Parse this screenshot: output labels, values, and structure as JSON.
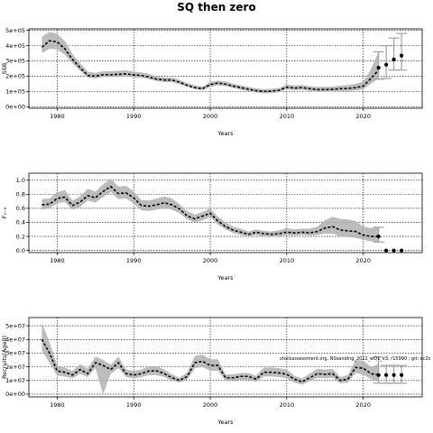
{
  "title": "SQ then zero",
  "chart_data": [
    {
      "type": "line",
      "panel": "ssb",
      "ylabel": "SSB",
      "xlabel": "Years",
      "xlim": [
        1976.3,
        2027.7
      ],
      "ylim": [
        -10000,
        510000
      ],
      "xticks": [
        1980,
        1990,
        2000,
        2010,
        2020
      ],
      "xtick_labels": [
        "1980",
        "1990",
        "2000",
        "2010",
        "2020"
      ],
      "yticks": [
        0,
        100000,
        200000,
        300000,
        400000,
        500000
      ],
      "ytick_labels": [
        "0e+00",
        "1e+05",
        "2e+05",
        "3e+05",
        "4e+05",
        "5e+05"
      ],
      "grid": true,
      "color_line": "#000000",
      "color_band": "#b0b0b0",
      "series": [
        {
          "role": "estimate",
          "x": [
            1978,
            1979,
            1980,
            1981,
            1982,
            1983,
            1984,
            1985,
            1986,
            1987,
            1988,
            1989,
            1990,
            1991,
            1992,
            1993,
            1994,
            1995,
            1996,
            1997,
            1998,
            1999,
            2000,
            2001,
            2002,
            2003,
            2004,
            2005,
            2006,
            2007,
            2008,
            2009,
            2010,
            2011,
            2012,
            2013,
            2014,
            2015,
            2016,
            2017,
            2018,
            2019,
            2020,
            2021,
            2022
          ],
          "values": [
            390000,
            432000,
            425000,
            380000,
            310000,
            255000,
            205000,
            200000,
            210000,
            210000,
            212000,
            215000,
            208000,
            205000,
            195000,
            180000,
            175000,
            175000,
            160000,
            140000,
            125000,
            118000,
            145000,
            155000,
            148000,
            135000,
            125000,
            115000,
            105000,
            100000,
            102000,
            108000,
            128000,
            122000,
            125000,
            118000,
            112000,
            112000,
            114000,
            118000,
            120000,
            125000,
            135000,
            185000,
            240000
          ],
          "lower": [
            350000,
            380000,
            375000,
            340000,
            285000,
            235000,
            190000,
            185000,
            195000,
            195000,
            195000,
            198000,
            193000,
            190000,
            180000,
            168000,
            162000,
            162000,
            148000,
            130000,
            115000,
            108000,
            130000,
            140000,
            135000,
            123000,
            112000,
            102000,
            93000,
            88000,
            90000,
            95000,
            113000,
            108000,
            111000,
            104000,
            98000,
            98000,
            100000,
            102000,
            103000,
            106000,
            113000,
            150000,
            185000
          ],
          "upper": [
            460000,
            490000,
            478000,
            430000,
            345000,
            285000,
            230000,
            222000,
            232000,
            232000,
            235000,
            238000,
            230000,
            225000,
            215000,
            198000,
            192000,
            192000,
            176000,
            155000,
            140000,
            132000,
            162000,
            172000,
            165000,
            150000,
            140000,
            130000,
            120000,
            115000,
            117000,
            123000,
            145000,
            140000,
            142000,
            135000,
            130000,
            130000,
            132000,
            138000,
            142000,
            150000,
            165000,
            245000,
            360000
          ]
        },
        {
          "role": "projection",
          "x": [
            2022,
            2023,
            2024,
            2025
          ],
          "values": [
            255000,
            275000,
            310000,
            335000
          ],
          "lower": [
            180000,
            185000,
            240000,
            240000
          ],
          "upper": [
            360000,
            400000,
            450000,
            480000
          ]
        }
      ]
    },
    {
      "type": "line",
      "panel": "f",
      "ylabel": "F₂₋₆",
      "xlabel": "Years",
      "xlim": [
        1976.3,
        2027.7
      ],
      "ylim": [
        -0.03,
        1.1
      ],
      "xticks": [
        1980,
        1990,
        2000,
        2010,
        2020
      ],
      "xtick_labels": [
        "1980",
        "1990",
        "2000",
        "2010",
        "2020"
      ],
      "yticks": [
        0,
        0.2,
        0.4,
        0.6,
        0.8,
        1.0
      ],
      "ytick_labels": [
        "0.0",
        "0.2",
        "0.4",
        "0.6",
        "0.8",
        "1.0"
      ],
      "grid": true,
      "series": [
        {
          "role": "estimate",
          "x": [
            1978,
            1979,
            1980,
            1981,
            1982,
            1983,
            1984,
            1985,
            1986,
            1987,
            1988,
            1989,
            1990,
            1991,
            1992,
            1993,
            1994,
            1995,
            1996,
            1997,
            1998,
            1999,
            2000,
            2001,
            2002,
            2003,
            2004,
            2005,
            2006,
            2007,
            2008,
            2009,
            2010,
            2011,
            2012,
            2013,
            2014,
            2015,
            2016,
            2017,
            2018,
            2019,
            2020,
            2021,
            2022
          ],
          "values": [
            0.65,
            0.66,
            0.74,
            0.76,
            0.64,
            0.69,
            0.78,
            0.75,
            0.84,
            0.91,
            0.81,
            0.82,
            0.75,
            0.64,
            0.63,
            0.65,
            0.68,
            0.65,
            0.59,
            0.49,
            0.45,
            0.49,
            0.53,
            0.42,
            0.34,
            0.29,
            0.26,
            0.23,
            0.26,
            0.24,
            0.23,
            0.24,
            0.26,
            0.25,
            0.26,
            0.25,
            0.27,
            0.32,
            0.34,
            0.29,
            0.28,
            0.27,
            0.22,
            0.2,
            0.2
          ],
          "lower": [
            0.58,
            0.6,
            0.67,
            0.69,
            0.58,
            0.62,
            0.71,
            0.68,
            0.76,
            0.83,
            0.73,
            0.74,
            0.67,
            0.57,
            0.56,
            0.58,
            0.61,
            0.58,
            0.53,
            0.44,
            0.4,
            0.43,
            0.47,
            0.37,
            0.3,
            0.25,
            0.22,
            0.2,
            0.22,
            0.2,
            0.19,
            0.2,
            0.22,
            0.21,
            0.22,
            0.21,
            0.22,
            0.24,
            0.24,
            0.2,
            0.19,
            0.18,
            0.15,
            0.13,
            0.12
          ],
          "upper": [
            0.73,
            0.74,
            0.83,
            0.86,
            0.71,
            0.77,
            0.88,
            0.84,
            0.94,
            1.02,
            0.91,
            0.92,
            0.84,
            0.72,
            0.71,
            0.74,
            0.77,
            0.74,
            0.66,
            0.56,
            0.51,
            0.55,
            0.6,
            0.48,
            0.4,
            0.34,
            0.31,
            0.27,
            0.3,
            0.28,
            0.27,
            0.29,
            0.32,
            0.3,
            0.31,
            0.31,
            0.34,
            0.43,
            0.48,
            0.45,
            0.44,
            0.42,
            0.34,
            0.32,
            0.33
          ]
        },
        {
          "role": "projection",
          "x": [
            2022,
            2023,
            2024,
            2025
          ],
          "values": [
            0.2,
            0.0,
            0.0,
            0.0
          ],
          "lower": [
            0.12,
            0.0,
            0.0,
            0.0
          ],
          "upper": [
            0.33,
            0.0,
            0.0,
            0.0
          ]
        }
      ]
    },
    {
      "type": "line",
      "panel": "recruits",
      "ylabel": "Recruits(Age0)",
      "xlabel": "Years",
      "xlim": [
        1976.3,
        2027.7
      ],
      "ylim": [
        -2000000,
        56000000
      ],
      "xticks": [
        1980,
        1990,
        2000,
        2010,
        2020
      ],
      "xtick_labels": [
        "1980",
        "1990",
        "2000",
        "2010",
        "2020"
      ],
      "yticks": [
        0,
        10000000,
        20000000,
        30000000,
        40000000,
        50000000
      ],
      "ytick_labels": [
        "0e+00",
        "1e+07",
        "2e+07",
        "3e+07",
        "4e+07",
        "5e+07"
      ],
      "grid": true,
      "annotation": "stockassessment.org, NSsanding_2022_wQ1_v3, r15990 ; git: ec2c",
      "series": [
        {
          "role": "estimate",
          "x": [
            1978,
            1979,
            1980,
            1981,
            1982,
            1983,
            1984,
            1985,
            1986,
            1987,
            1988,
            1989,
            1990,
            1991,
            1992,
            1993,
            1994,
            1995,
            1996,
            1997,
            1998,
            1999,
            2000,
            2001,
            2002,
            2003,
            2004,
            2005,
            2006,
            2007,
            2008,
            2009,
            2010,
            2011,
            2012,
            2013,
            2014,
            2015,
            2016,
            2017,
            2018,
            2019,
            2020,
            2021,
            2022
          ],
          "values": [
            40000000,
            30000000,
            17000000,
            16000000,
            14000000,
            18000000,
            15000000,
            23000000,
            21000000,
            18000000,
            23000000,
            15000000,
            14000000,
            15000000,
            17000000,
            17000000,
            15000000,
            12000000,
            10000000,
            13000000,
            23000000,
            24000000,
            21000000,
            21000000,
            12000000,
            12000000,
            13000000,
            13000000,
            11000000,
            16000000,
            16000000,
            15500000,
            14500000,
            11000000,
            9000000,
            12000000,
            15000000,
            14500000,
            15000000,
            10000000,
            11000000,
            19500000,
            19000000,
            15000000,
            14000000
          ],
          "lower": [
            32000000,
            23000000,
            13500000,
            13000000,
            11500000,
            15000000,
            12500000,
            19000000,
            17500,
            15000000,
            19000000,
            12500000,
            11500000,
            12500000,
            14000000,
            14000000,
            12500000,
            10000000,
            8500000,
            10500000,
            19000000,
            20000000,
            17000000,
            17000000,
            10000000,
            10000000,
            10500000,
            10500000,
            9000000,
            13000000,
            13000000,
            12500000,
            11500000,
            8500000,
            7000000,
            9500000,
            12000000,
            11500000,
            12000000,
            8000000,
            8500000,
            15500000,
            14500000,
            11000000,
            9000000
          ],
          "upper": [
            52000000,
            38000000,
            21000000,
            19500000,
            17000000,
            22000000,
            18500000,
            27500000,
            25000000,
            21500000,
            27500000,
            18000000,
            17000000,
            18000000,
            20500000,
            20500000,
            18000000,
            14500000,
            12000000,
            16000000,
            28000000,
            29000000,
            25500000,
            25500000,
            14500000,
            14500000,
            15500000,
            15500000,
            13500000,
            19500000,
            19500000,
            19000000,
            18000000,
            13500000,
            11500000,
            15000000,
            18500000,
            18000000,
            18500000,
            12500000,
            14000000,
            25000000,
            24500000,
            20000000,
            22000000
          ]
        },
        {
          "role": "projection",
          "x": [
            2022,
            2023,
            2024,
            2025
          ],
          "values": [
            14000000,
            14000000,
            14000000,
            14000000
          ],
          "lower": [
            8000000,
            8000000,
            8000000,
            8000000
          ],
          "upper": [
            27000000,
            21000000,
            21000000,
            21000000
          ]
        }
      ]
    }
  ]
}
